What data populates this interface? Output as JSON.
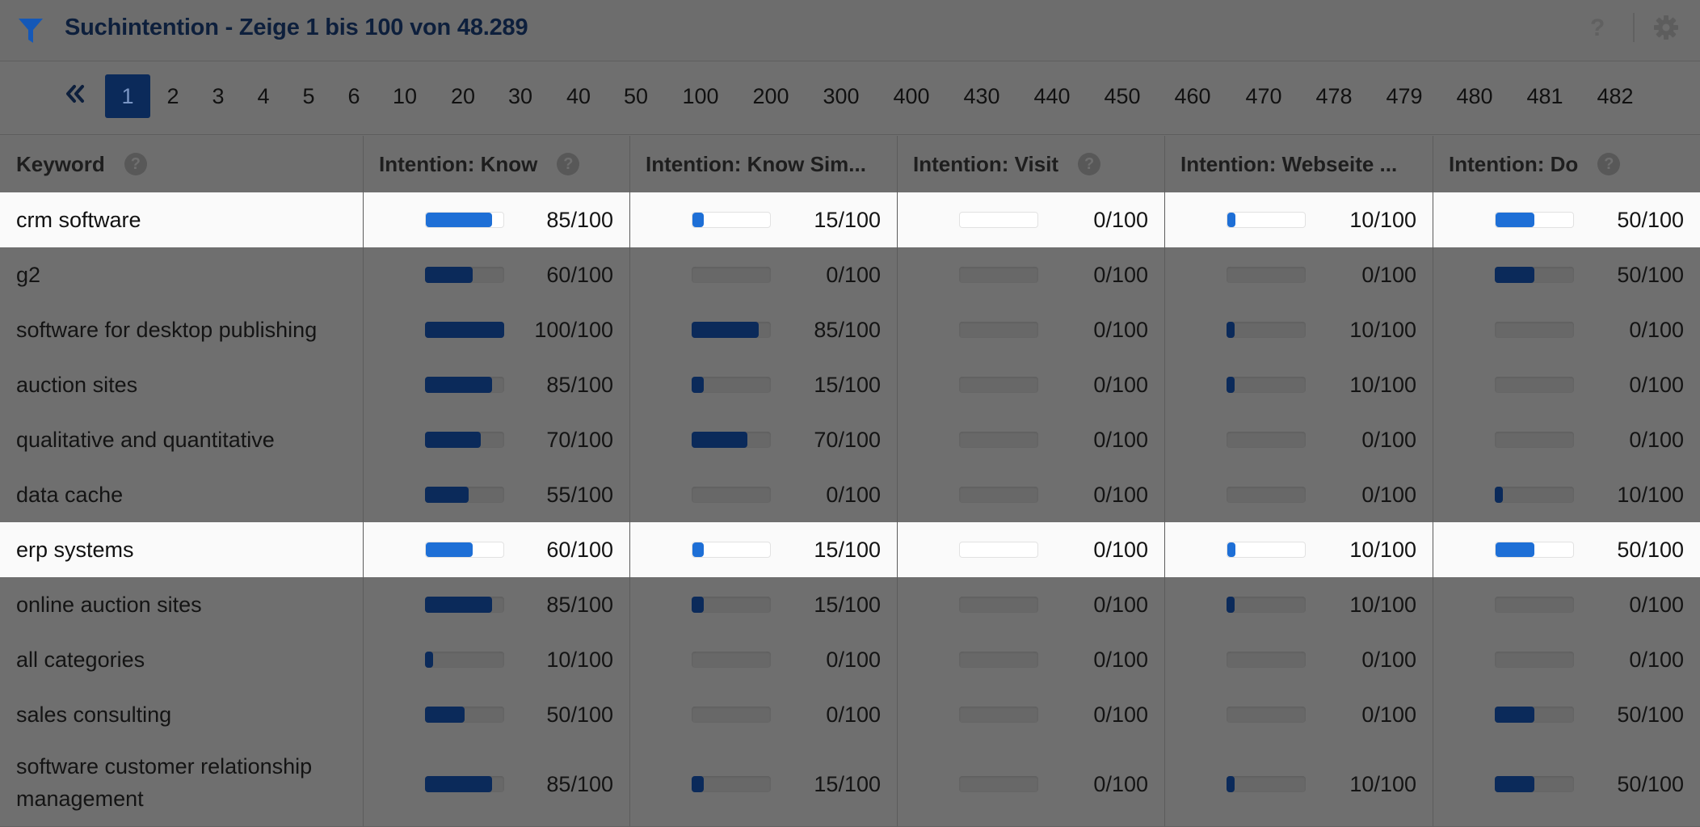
{
  "header": {
    "title": "Suchintention - Zeige 1 bis 100 von 48.289",
    "help_label": "?"
  },
  "pagination": {
    "current": "1",
    "pages": [
      "1",
      "2",
      "3",
      "4",
      "5",
      "6",
      "10",
      "20",
      "30",
      "40",
      "50",
      "100",
      "200",
      "300",
      "400",
      "430",
      "440",
      "450",
      "460",
      "470",
      "478",
      "479",
      "480",
      "481",
      "482"
    ]
  },
  "columns": [
    {
      "label": "Keyword",
      "help": "?"
    },
    {
      "label": "Intention: Know",
      "help": "?"
    },
    {
      "label": "Intention: Know Sim...",
      "help": ""
    },
    {
      "label": "Intention: Visit",
      "help": "?"
    },
    {
      "label": "Intention: Webseite ...",
      "help": ""
    },
    {
      "label": "Intention: Do",
      "help": "?"
    }
  ],
  "rows": [
    {
      "keyword": "crm software",
      "highlighted": true,
      "scores": [
        "85/100",
        "15/100",
        "0/100",
        "10/100",
        "50/100"
      ],
      "values": [
        85,
        15,
        0,
        10,
        50
      ]
    },
    {
      "keyword": "g2",
      "highlighted": false,
      "scores": [
        "60/100",
        "0/100",
        "0/100",
        "0/100",
        "50/100"
      ],
      "values": [
        60,
        0,
        0,
        0,
        50
      ]
    },
    {
      "keyword": "software for desktop publishing",
      "highlighted": false,
      "scores": [
        "100/100",
        "85/100",
        "0/100",
        "10/100",
        "0/100"
      ],
      "values": [
        100,
        85,
        0,
        10,
        0
      ]
    },
    {
      "keyword": "auction sites",
      "highlighted": false,
      "scores": [
        "85/100",
        "15/100",
        "0/100",
        "10/100",
        "0/100"
      ],
      "values": [
        85,
        15,
        0,
        10,
        0
      ]
    },
    {
      "keyword": "qualitative and quantitative",
      "highlighted": false,
      "scores": [
        "70/100",
        "70/100",
        "0/100",
        "0/100",
        "0/100"
      ],
      "values": [
        70,
        70,
        0,
        0,
        0
      ]
    },
    {
      "keyword": "data cache",
      "highlighted": false,
      "scores": [
        "55/100",
        "0/100",
        "0/100",
        "0/100",
        "10/100"
      ],
      "values": [
        55,
        0,
        0,
        0,
        10
      ]
    },
    {
      "keyword": "erp systems",
      "highlighted": true,
      "scores": [
        "60/100",
        "15/100",
        "0/100",
        "10/100",
        "50/100"
      ],
      "values": [
        60,
        15,
        0,
        10,
        50
      ]
    },
    {
      "keyword": "online auction sites",
      "highlighted": false,
      "scores": [
        "85/100",
        "15/100",
        "0/100",
        "10/100",
        "0/100"
      ],
      "values": [
        85,
        15,
        0,
        10,
        0
      ]
    },
    {
      "keyword": "all categories",
      "highlighted": false,
      "scores": [
        "10/100",
        "0/100",
        "0/100",
        "0/100",
        "0/100"
      ],
      "values": [
        10,
        0,
        0,
        0,
        0
      ]
    },
    {
      "keyword": "sales consulting",
      "highlighted": false,
      "scores": [
        "50/100",
        "0/100",
        "0/100",
        "0/100",
        "50/100"
      ],
      "values": [
        50,
        0,
        0,
        0,
        50
      ]
    },
    {
      "keyword": "software customer relationship management",
      "highlighted": false,
      "scores": [
        "85/100",
        "15/100",
        "0/100",
        "10/100",
        "50/100"
      ],
      "values": [
        85,
        15,
        0,
        10,
        50
      ]
    }
  ],
  "colors": {
    "accent_dark": "#0b2a5a",
    "accent_highlight": "#1e6fd6",
    "title_color": "#0d1f3c"
  },
  "icons": {
    "header": "filter-icon",
    "settings": "gear-icon",
    "help": "help-icon",
    "first_page": "double-chevron-left-icon"
  }
}
